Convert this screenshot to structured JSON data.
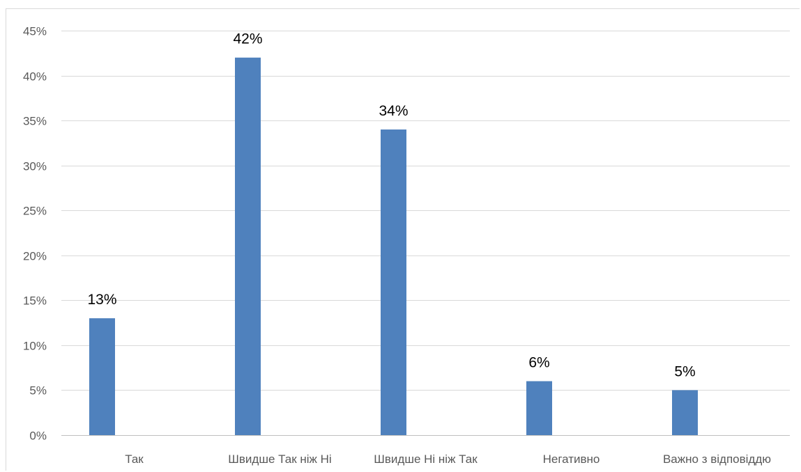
{
  "chart_data": {
    "type": "bar",
    "title": "",
    "xlabel": "",
    "ylabel": "",
    "categories": [
      "Так",
      "Швидше Так ніж Ні",
      "Швидше Ні ніж Так",
      "Негативно",
      "Важно з відповіддю"
    ],
    "values": [
      13,
      42,
      34,
      6,
      5
    ],
    "value_labels": [
      "13%",
      "42%",
      "34%",
      "6%",
      "5%"
    ],
    "ylim": [
      0,
      45
    ],
    "ytick_values": [
      0,
      5,
      10,
      15,
      20,
      25,
      30,
      35,
      40,
      45
    ],
    "ytick_labels": [
      "0%",
      "5%",
      "10%",
      "15%",
      "20%",
      "25%",
      "30%",
      "35%",
      "40%",
      "45%"
    ],
    "grid": true,
    "legend": "none",
    "bar_color": "#4f81bd",
    "grid_color": "#d9d9d9"
  }
}
